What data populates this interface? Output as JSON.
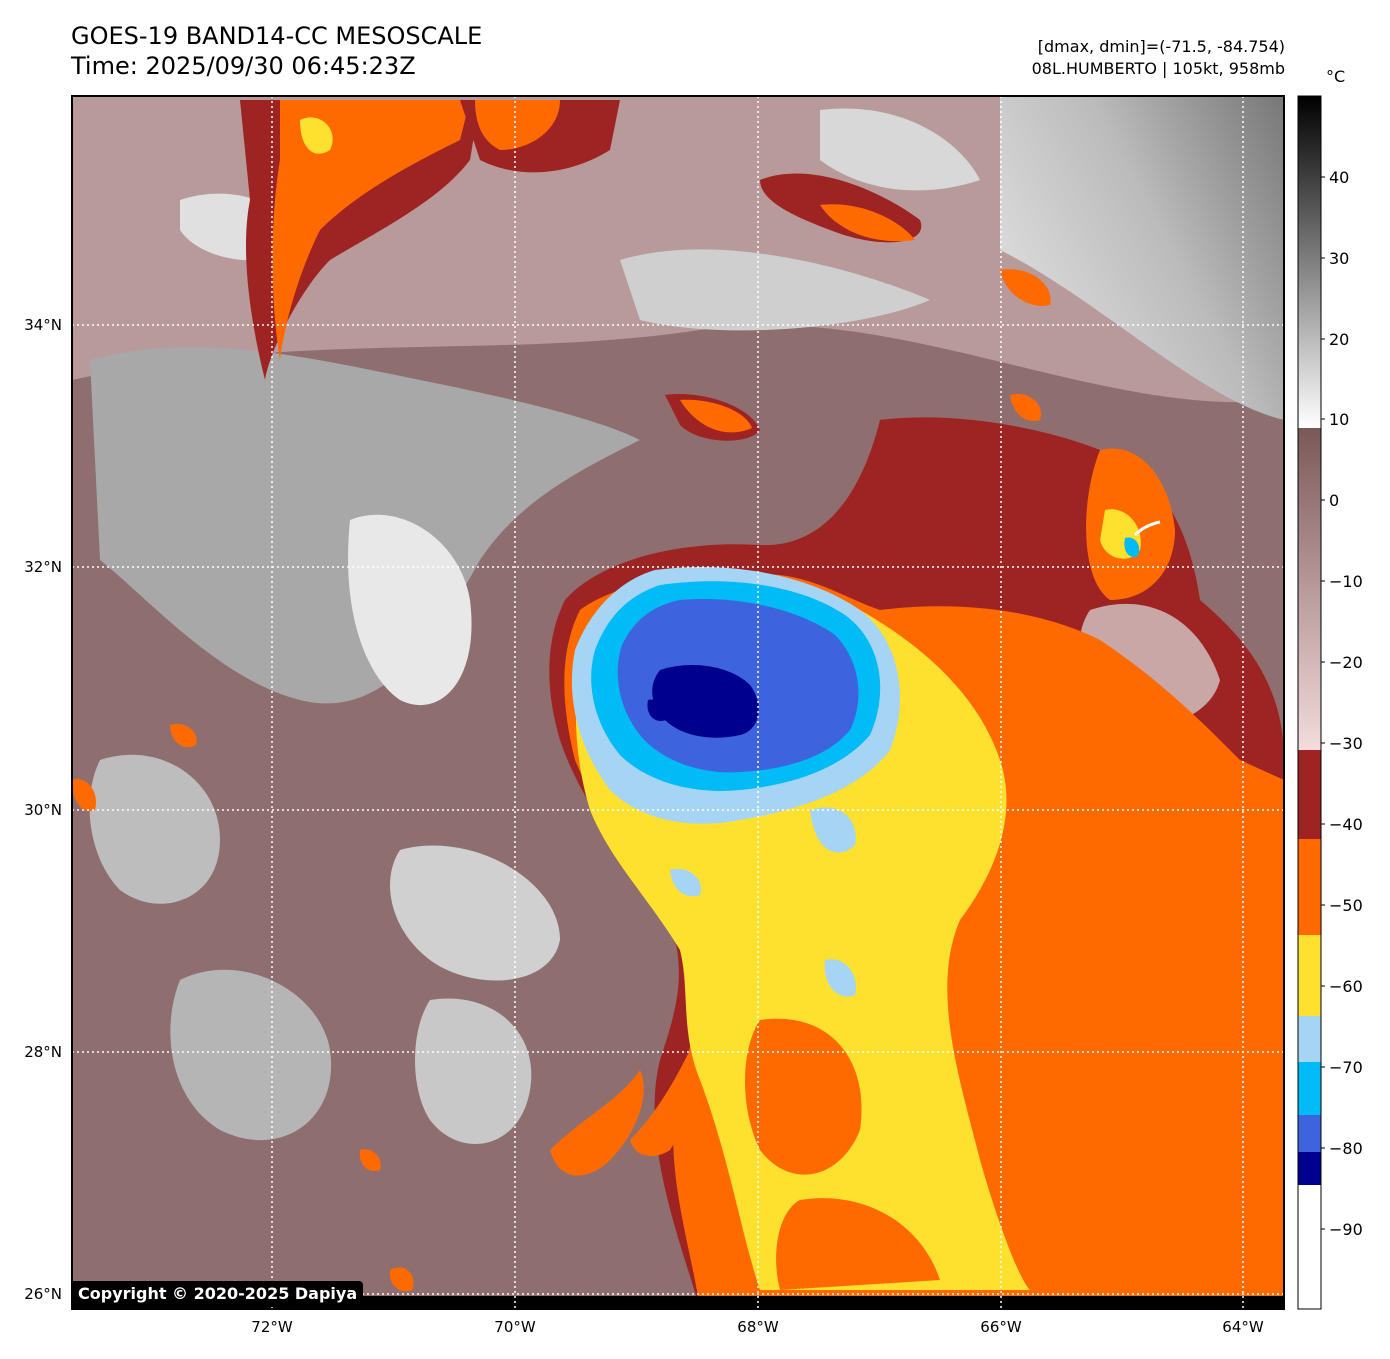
{
  "header": {
    "title": "GOES-19 BAND14-CC MESOSCALE",
    "time": "Time: 2025/09/30 06:45:23Z",
    "range": "[dmax, dmin]=(-71.5, -84.754)",
    "storm": "08L.HUMBERTO | 105kt, 958mb"
  },
  "map": {
    "lat_labels": [
      "34°N",
      "32°N",
      "30°N",
      "28°N",
      "26°N"
    ],
    "lon_labels": [
      "72°W",
      "70°W",
      "68°W",
      "66°W",
      "64°W"
    ]
  },
  "colorbar": {
    "unit": "°C",
    "ticks": [
      "40",
      "30",
      "20",
      "10",
      "0",
      "−10",
      "−20",
      "−30",
      "−40",
      "−50",
      "−60",
      "−70",
      "−80",
      "−90"
    ],
    "colors": {
      "gray_top": "#000000",
      "gray_bottom": "#ffffff",
      "brown_top": "#7a5858",
      "brown_bottom": "#f4dcdc",
      "dark_red": "#9e2424",
      "orange": "#ff6a00",
      "yellow": "#fde12e",
      "light_blue": "#a6d4f5",
      "cyan": "#00bbf5",
      "royal_blue": "#3d64dc",
      "navy": "#00008f",
      "white": "#ffffff"
    }
  },
  "copyright": "Copyright © 2020-2025 Dapiya"
}
